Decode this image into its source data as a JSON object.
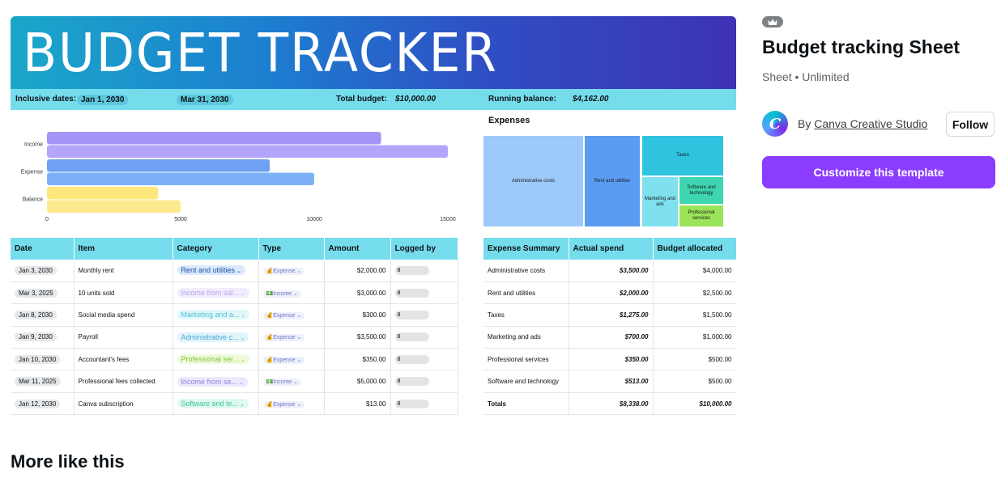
{
  "preview": {
    "title": "BUDGET TRACKER",
    "info": {
      "dates_label": "Inclusive dates:",
      "start_date": "Jan 1, 2030",
      "end_date": "Mar 31, 2030",
      "budget_label": "Total budget:",
      "budget_value": "$10,000.00",
      "balance_label": "Running balance:",
      "balance_value": "$4,162.00"
    },
    "expenses_title": "Expenses",
    "treemap": [
      {
        "label": "Administrative costs",
        "color": "#9ec9fb"
      },
      {
        "label": "Rent and utilities",
        "color": "#5a9cf2"
      },
      {
        "label": "Taxes",
        "color": "#2fc3df"
      },
      {
        "label": "Marketing and ads",
        "color": "#7fe0ee"
      },
      {
        "label": "Software and technology",
        "color": "#3ed6b0"
      },
      {
        "label": "Professional services",
        "color": "#9be35a"
      }
    ],
    "transactions": {
      "headers": [
        "Date",
        "Item",
        "Category",
        "Type",
        "Amount",
        "Logged by"
      ],
      "rows": [
        {
          "date": "Jan 3, 2030",
          "item": "Monthly rent",
          "category": "Rent and utilities",
          "cat_bg": "#dbe9fd",
          "cat_fg": "#1e4e9a",
          "type": "Expense",
          "amount": "$2,000.00",
          "logged": "8"
        },
        {
          "date": "Mar 3, 2025",
          "item": "10 units sold",
          "category": "Income from sal...",
          "cat_bg": "#f1ecfd",
          "cat_fg": "#b6a8e8",
          "type": "Income",
          "amount": "$3,000.00",
          "logged": "8"
        },
        {
          "date": "Jan 8, 2030",
          "item": "Social media spend",
          "category": "Marketing and a...",
          "cat_bg": "#e1f8fb",
          "cat_fg": "#4dbfd3",
          "type": "Expense",
          "amount": "$300.00",
          "logged": "8"
        },
        {
          "date": "Jan 9, 2030",
          "item": "Payroll",
          "category": "Administrative c...",
          "cat_bg": "#e1f4fb",
          "cat_fg": "#47a9d6",
          "type": "Expense",
          "amount": "$3,500.00",
          "logged": "8"
        },
        {
          "date": "Jan 10, 2030",
          "item": "Accountant's fees",
          "category": "Professional ser...",
          "cat_bg": "#eefad9",
          "cat_fg": "#7cc43a",
          "type": "Expense",
          "amount": "$350.00",
          "logged": "8"
        },
        {
          "date": "Mar 11, 2025",
          "item": "Professional fees collected",
          "category": "Income from se...",
          "cat_bg": "#ece9fc",
          "cat_fg": "#8e7fe0",
          "type": "Income",
          "amount": "$5,000.00",
          "logged": "8"
        },
        {
          "date": "Jan 12, 2030",
          "item": "Canva subscription",
          "category": "Software and te...",
          "cat_bg": "#dff8f0",
          "cat_fg": "#3fc49e",
          "type": "Expense",
          "amount": "$13.00",
          "logged": "8"
        }
      ]
    },
    "summary": {
      "headers": [
        "Expense Summary",
        "Actual spend",
        "Budget allocated"
      ],
      "rows": [
        {
          "name": "Administrative costs",
          "actual": "$3,500.00",
          "budget": "$4,000.00"
        },
        {
          "name": "Rent and utilities",
          "actual": "$2,000.00",
          "budget": "$2,500.00"
        },
        {
          "name": "Taxes",
          "actual": "$1,275.00",
          "budget": "$1,500.00"
        },
        {
          "name": "Marketing and ads",
          "actual": "$700.00",
          "budget": "$1,000.00"
        },
        {
          "name": "Professional services",
          "actual": "$350.00",
          "budget": "$500.00"
        },
        {
          "name": "Software and technology",
          "actual": "$513.00",
          "budget": "$500.00"
        },
        {
          "name": "Totals",
          "actual": "$8,338.00",
          "budget": "$10,000.00"
        }
      ]
    }
  },
  "chart_data": {
    "type": "bar",
    "orientation": "horizontal",
    "categories": [
      "Income",
      "Expense",
      "Balance"
    ],
    "series": [
      {
        "values": [
          12500,
          8338,
          4162
        ],
        "colors": [
          "#a394f5",
          "#6ea0f4",
          "#fde77d"
        ]
      },
      {
        "values": [
          15000,
          10000,
          5000
        ],
        "colors": [
          "#b3a6fa",
          "#7eb0f8",
          "#fdea8e"
        ]
      }
    ],
    "xlim": [
      0,
      15000
    ],
    "xticks": [
      "0",
      "5000",
      "10000",
      "15000"
    ]
  },
  "panel": {
    "crown_icon": "crown-icon",
    "title": "Budget tracking Sheet",
    "subtitle": "Sheet • Unlimited",
    "by": "By",
    "author": "Canva Creative Studio",
    "author_initial": "C",
    "follow": "Follow",
    "customize": "Customize this template",
    "accent": "#8b3dff"
  },
  "more_title": "More like this"
}
